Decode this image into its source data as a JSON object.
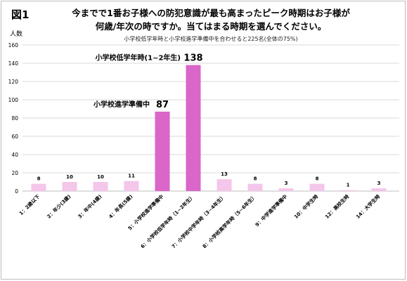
{
  "figure_label": "図1",
  "title_line1": "今までで1番お子様への防犯意識が最も高まったピーク時期はお子様が",
  "title_line2": "何歳/年次の時ですか。当てはまる時期を選んでください。",
  "subtitle": "小学校低学年時と小学校進学準備中を合わせると225名(全体の75%)",
  "colors": {
    "highlight": "#d966c8",
    "normal": "#f4c6ea",
    "grid": "#d9d9d9"
  },
  "chart_data": {
    "type": "bar",
    "ylabel": "人数",
    "ylim": [
      0,
      160
    ],
    "yticks": [
      0,
      20,
      40,
      60,
      80,
      100,
      120,
      140,
      160
    ],
    "categories": [
      "1：2歳以下",
      "2：年少(3歳)",
      "3：年中(4歳)",
      "4：年長(5歳)",
      "5：小学校進学準備中",
      "6：小学校低学年時（1~2年生）",
      "7：小学校中学年時（3~4年生）",
      "8：小学校高学年時（5~6年生）",
      "9：中学進学準備中",
      "10：中学生時",
      "12：高校生時",
      "14：大学生時"
    ],
    "values": [
      8,
      10,
      10,
      11,
      87,
      138,
      13,
      8,
      3,
      8,
      1,
      3
    ],
    "highlighted": [
      false,
      false,
      false,
      false,
      true,
      true,
      false,
      false,
      false,
      false,
      false,
      false
    ],
    "callouts": [
      {
        "label": "小学校進学準備中",
        "value": "87"
      },
      {
        "label": "小学校低学年時(1~2年生)",
        "value": "138"
      }
    ],
    "grid": true,
    "legend": "none"
  }
}
